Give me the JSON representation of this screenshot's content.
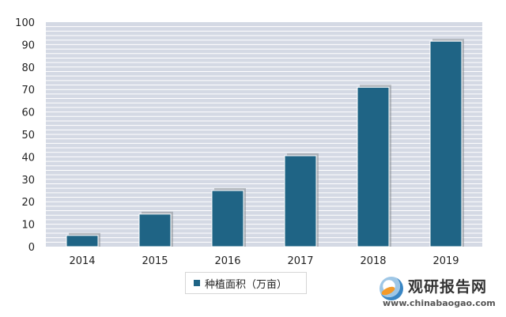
{
  "chart_data": {
    "type": "bar",
    "title": "",
    "xlabel": "",
    "ylabel": "",
    "categories": [
      "2014",
      "2015",
      "2016",
      "2017",
      "2018",
      "2019"
    ],
    "series": [
      {
        "name": "种植面积（万亩）",
        "values": [
          5,
          14.5,
          25,
          40.5,
          71,
          91.5
        ]
      }
    ],
    "ylim": [
      0,
      100
    ],
    "yticks": [
      0,
      10,
      20,
      30,
      40,
      50,
      60,
      70,
      80,
      90,
      100
    ],
    "grid": true,
    "legend_position": "bottom-center",
    "colors": {
      "bar": "#1f6485",
      "grid": "#ffffff",
      "plot_bg": "#d4d9e4"
    }
  },
  "watermark": {
    "name": "观研报告网",
    "url": "www.chinabaogao.com"
  }
}
